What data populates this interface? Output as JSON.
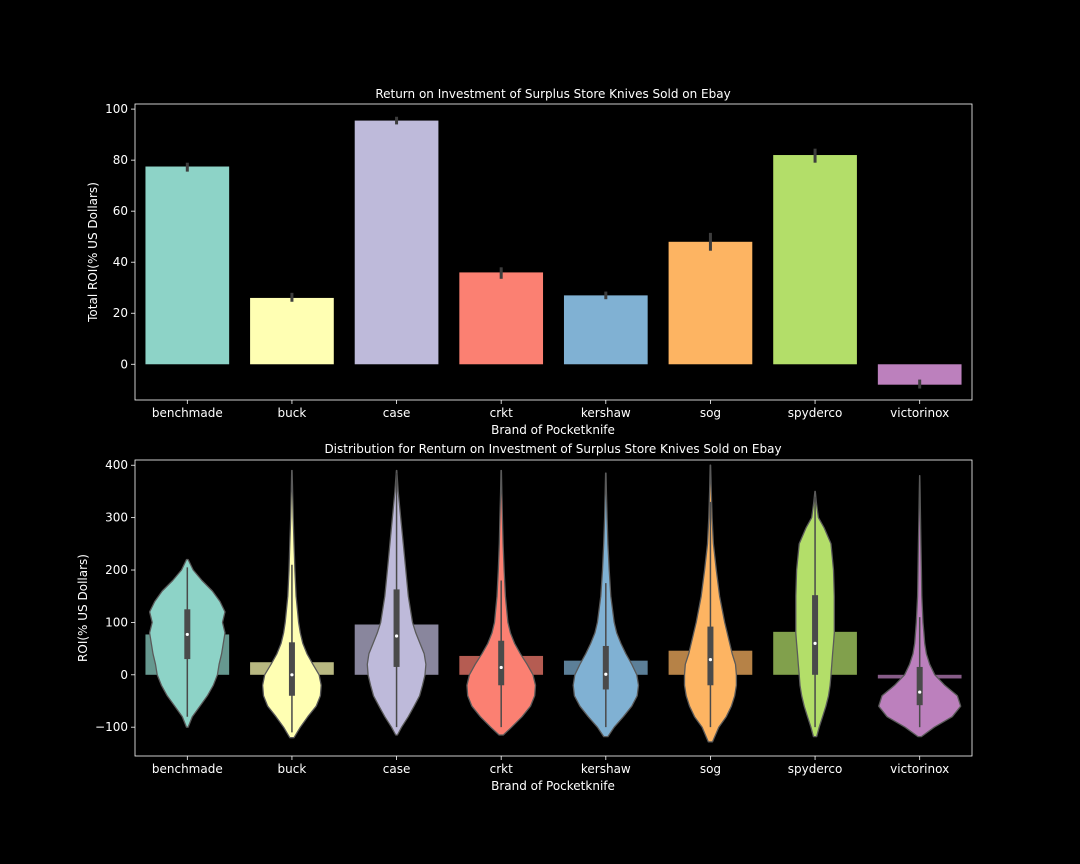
{
  "colors": [
    "#8dd3c7",
    "#ffffb3",
    "#bebada",
    "#fb8072",
    "#80b1d3",
    "#fdb462",
    "#b3de69",
    "#bc80bd"
  ],
  "chart_data": [
    {
      "type": "bar",
      "title": "Return on Investment of Surplus Store Knives Sold on Ebay",
      "xlabel": "Brand of Pocketknife",
      "ylabel": "Total ROI(% US Dollars)",
      "categories": [
        "benchmade",
        "buck",
        "case",
        "crkt",
        "kershaw",
        "sog",
        "spyderco",
        "victorinox"
      ],
      "values": [
        77.5,
        26,
        95.5,
        36,
        27,
        48,
        82,
        -8
      ],
      "error_low": [
        75.5,
        24.5,
        94,
        33.5,
        25.5,
        44.5,
        79,
        -9.5
      ],
      "error_high": [
        79,
        28,
        97,
        38,
        28.5,
        51.5,
        84.5,
        -6
      ],
      "ylim": [
        -14,
        102
      ],
      "yticks": [
        0,
        20,
        40,
        60,
        80,
        100
      ],
      "grid": false,
      "legend": "none"
    },
    {
      "type": "violin",
      "title": "Distribution for Renturn on Investment of Surplus Store Knives Sold on Ebay",
      "xlabel": "Brand of Pocketknife",
      "ylabel": "ROI(% US Dollars)",
      "categories": [
        "benchmade",
        "buck",
        "case",
        "crkt",
        "kershaw",
        "sog",
        "spyderco",
        "victorinox"
      ],
      "ylim": [
        -155,
        410
      ],
      "yticks": [
        -100,
        0,
        100,
        200,
        300,
        400
      ],
      "grid": false,
      "legend": "none",
      "mean_bars": [
        77,
        24,
        96,
        36,
        27,
        46,
        82,
        -7
      ],
      "stats": [
        {
          "min": -95,
          "max": 220,
          "q1": 30,
          "median": 77,
          "q3": 125,
          "whisker_low": -80,
          "whisker_high": 205
        },
        {
          "min": -120,
          "max": 390,
          "q1": -40,
          "median": 0,
          "q3": 62,
          "whisker_low": -110,
          "whisker_high": 210
        },
        {
          "min": -115,
          "max": 390,
          "q1": 15,
          "median": 74,
          "q3": 163,
          "whisker_low": -100,
          "whisker_high": 385
        },
        {
          "min": -115,
          "max": 390,
          "q1": -20,
          "median": 14,
          "q3": 65,
          "whisker_low": -100,
          "whisker_high": 180
        },
        {
          "min": -118,
          "max": 385,
          "q1": -28,
          "median": 1,
          "q3": 55,
          "whisker_low": -100,
          "whisker_high": 175
        },
        {
          "min": -128,
          "max": 400,
          "q1": -20,
          "median": 29,
          "q3": 92,
          "whisker_low": -100,
          "whisker_high": 330
        },
        {
          "min": -118,
          "max": 350,
          "q1": 0,
          "median": 60,
          "q3": 152,
          "whisker_low": -100,
          "whisker_high": 340
        },
        {
          "min": -118,
          "max": 380,
          "q1": -58,
          "median": -33,
          "q3": 15,
          "whisker_low": -100,
          "whisker_high": 110
        }
      ],
      "density": [
        [
          [
            -100,
            0.02
          ],
          [
            -80,
            0.12
          ],
          [
            -60,
            0.3
          ],
          [
            -40,
            0.48
          ],
          [
            -20,
            0.62
          ],
          [
            0,
            0.72
          ],
          [
            20,
            0.76
          ],
          [
            40,
            0.82
          ],
          [
            60,
            0.86
          ],
          [
            80,
            0.9
          ],
          [
            100,
            0.84
          ],
          [
            120,
            0.9
          ],
          [
            140,
            0.78
          ],
          [
            160,
            0.6
          ],
          [
            180,
            0.35
          ],
          [
            200,
            0.14
          ],
          [
            220,
            0.02
          ]
        ],
        [
          [
            -120,
            0.05
          ],
          [
            -100,
            0.2
          ],
          [
            -80,
            0.38
          ],
          [
            -60,
            0.58
          ],
          [
            -40,
            0.68
          ],
          [
            -20,
            0.7
          ],
          [
            0,
            0.65
          ],
          [
            20,
            0.5
          ],
          [
            40,
            0.36
          ],
          [
            60,
            0.26
          ],
          [
            80,
            0.2
          ],
          [
            100,
            0.16
          ],
          [
            150,
            0.1
          ],
          [
            200,
            0.07
          ],
          [
            250,
            0.05
          ],
          [
            300,
            0.03
          ],
          [
            350,
            0.015
          ],
          [
            390,
            0.005
          ]
        ],
        [
          [
            -115,
            0.02
          ],
          [
            -100,
            0.12
          ],
          [
            -80,
            0.28
          ],
          [
            -60,
            0.42
          ],
          [
            -40,
            0.55
          ],
          [
            -20,
            0.62
          ],
          [
            0,
            0.68
          ],
          [
            20,
            0.7
          ],
          [
            40,
            0.66
          ],
          [
            60,
            0.56
          ],
          [
            80,
            0.46
          ],
          [
            100,
            0.38
          ],
          [
            150,
            0.28
          ],
          [
            200,
            0.22
          ],
          [
            250,
            0.16
          ],
          [
            300,
            0.1
          ],
          [
            350,
            0.04
          ],
          [
            390,
            0.005
          ]
        ],
        [
          [
            -115,
            0.05
          ],
          [
            -100,
            0.25
          ],
          [
            -80,
            0.5
          ],
          [
            -60,
            0.7
          ],
          [
            -40,
            0.8
          ],
          [
            -20,
            0.82
          ],
          [
            0,
            0.76
          ],
          [
            20,
            0.62
          ],
          [
            40,
            0.46
          ],
          [
            60,
            0.32
          ],
          [
            80,
            0.22
          ],
          [
            100,
            0.16
          ],
          [
            150,
            0.1
          ],
          [
            200,
            0.07
          ],
          [
            250,
            0.045
          ],
          [
            300,
            0.03
          ],
          [
            350,
            0.015
          ],
          [
            390,
            0.005
          ]
        ],
        [
          [
            -118,
            0.05
          ],
          [
            -100,
            0.2
          ],
          [
            -80,
            0.42
          ],
          [
            -60,
            0.62
          ],
          [
            -40,
            0.75
          ],
          [
            -20,
            0.78
          ],
          [
            0,
            0.74
          ],
          [
            20,
            0.62
          ],
          [
            40,
            0.48
          ],
          [
            60,
            0.36
          ],
          [
            80,
            0.26
          ],
          [
            100,
            0.2
          ],
          [
            150,
            0.12
          ],
          [
            200,
            0.08
          ],
          [
            250,
            0.05
          ],
          [
            300,
            0.03
          ],
          [
            350,
            0.015
          ],
          [
            385,
            0.005
          ]
        ],
        [
          [
            -128,
            0.05
          ],
          [
            -100,
            0.2
          ],
          [
            -80,
            0.38
          ],
          [
            -60,
            0.5
          ],
          [
            -40,
            0.58
          ],
          [
            -20,
            0.62
          ],
          [
            0,
            0.62
          ],
          [
            20,
            0.6
          ],
          [
            40,
            0.52
          ],
          [
            60,
            0.46
          ],
          [
            80,
            0.4
          ],
          [
            100,
            0.34
          ],
          [
            150,
            0.22
          ],
          [
            200,
            0.14
          ],
          [
            250,
            0.07
          ],
          [
            300,
            0.04
          ],
          [
            350,
            0.02
          ],
          [
            400,
            0.005
          ]
        ],
        [
          [
            -118,
            0.04
          ],
          [
            -100,
            0.1
          ],
          [
            -80,
            0.18
          ],
          [
            -60,
            0.26
          ],
          [
            -40,
            0.32
          ],
          [
            -20,
            0.36
          ],
          [
            0,
            0.38
          ],
          [
            20,
            0.4
          ],
          [
            40,
            0.42
          ],
          [
            60,
            0.44
          ],
          [
            80,
            0.46
          ],
          [
            100,
            0.46
          ],
          [
            150,
            0.46
          ],
          [
            200,
            0.44
          ],
          [
            250,
            0.38
          ],
          [
            280,
            0.22
          ],
          [
            300,
            0.08
          ],
          [
            330,
            0.03
          ],
          [
            350,
            0.005
          ]
        ],
        [
          [
            -118,
            0.04
          ],
          [
            -100,
            0.35
          ],
          [
            -80,
            0.78
          ],
          [
            -60,
            0.98
          ],
          [
            -40,
            0.9
          ],
          [
            -20,
            0.6
          ],
          [
            0,
            0.36
          ],
          [
            20,
            0.24
          ],
          [
            40,
            0.16
          ],
          [
            60,
            0.12
          ],
          [
            80,
            0.1
          ],
          [
            100,
            0.08
          ],
          [
            150,
            0.05
          ],
          [
            200,
            0.04
          ],
          [
            250,
            0.03
          ],
          [
            300,
            0.02
          ],
          [
            350,
            0.01
          ],
          [
            380,
            0.003
          ]
        ]
      ]
    }
  ]
}
